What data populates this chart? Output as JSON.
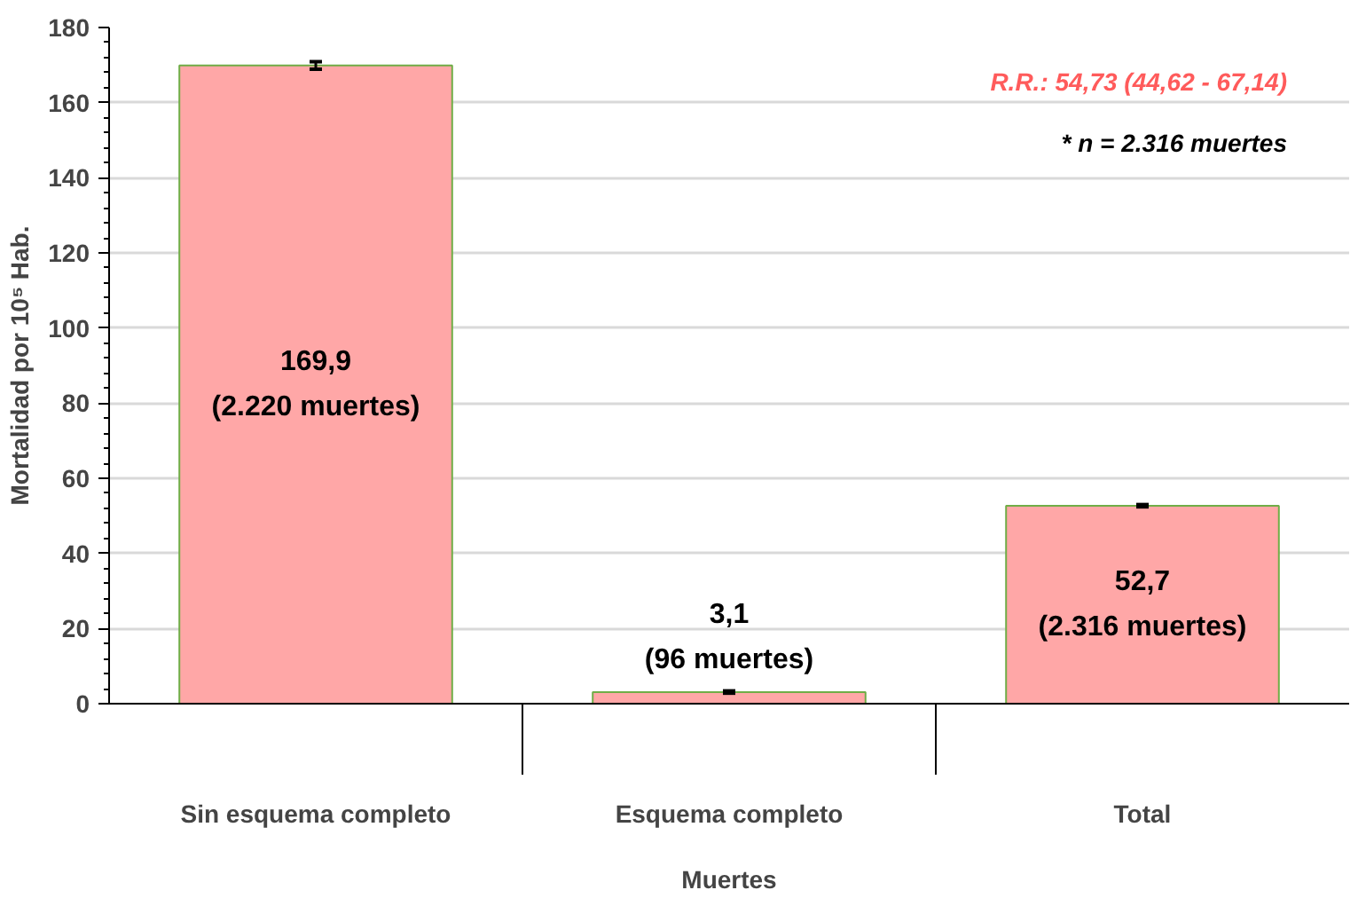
{
  "chart_data": {
    "type": "bar",
    "ylabel": "Mortalidad por 10⁵ Hab.",
    "xlabel": "Muertes",
    "categories": [
      "Sin esquema completo",
      "Esquema completo",
      "Total"
    ],
    "values": [
      169.9,
      3.1,
      52.7
    ],
    "errors": [
      1.0,
      0.3,
      0.3
    ],
    "value_labels": [
      "169,9\n(2.220 muertes)",
      "3,1\n(96 muertes)",
      "52,7\n(2.316 muertes)"
    ],
    "color": "#ffa7a7",
    "ylim": [
      0,
      180
    ],
    "yticks": [
      0,
      20,
      40,
      60,
      80,
      100,
      120,
      140,
      160,
      180
    ],
    "grid": "y",
    "annotations": [
      "R.R.: 54,73 (44,62 - 67,14)",
      "* n = 2.316 muertes"
    ]
  }
}
